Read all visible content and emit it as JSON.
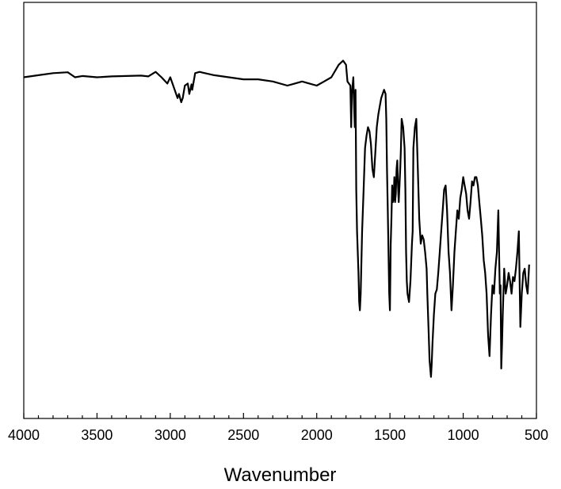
{
  "chart_data": {
    "type": "line",
    "title": "",
    "xlabel": "Wavenumber",
    "ylabel": "",
    "xlim": [
      4000,
      500
    ],
    "x_reversed": true,
    "ylim": [
      0,
      100
    ],
    "grid": false,
    "legend": "none",
    "x_ticks": [
      4000,
      3500,
      3000,
      2500,
      2000,
      1500,
      1000,
      500
    ],
    "x_tick_labels": [
      "4000",
      "3500",
      "3000",
      "2500",
      "2000",
      "1500",
      "1000",
      "500"
    ],
    "line_color": "#000000",
    "series": [
      {
        "x": [
          4000,
          3900,
          3800,
          3700,
          3650,
          3600,
          3500,
          3400,
          3300,
          3200,
          3150,
          3100,
          3060,
          3020,
          3000,
          2980,
          2950,
          2940,
          2925,
          2915,
          2900,
          2880,
          2870,
          2855,
          2850,
          2830,
          2800,
          2700,
          2600,
          2500,
          2400,
          2300,
          2200,
          2150,
          2100,
          2050,
          2000,
          1950,
          1900,
          1850,
          1820,
          1800,
          1790,
          1770,
          1765,
          1760,
          1750,
          1745,
          1740,
          1735,
          1730,
          1725,
          1720,
          1715,
          1710,
          1705,
          1700,
          1690,
          1680,
          1670,
          1660,
          1650,
          1640,
          1630,
          1620,
          1610,
          1600,
          1590,
          1580,
          1570,
          1560,
          1550,
          1540,
          1530,
          1525,
          1520,
          1515,
          1510,
          1505,
          1500,
          1495,
          1490,
          1485,
          1480,
          1475,
          1470,
          1465,
          1460,
          1455,
          1450,
          1445,
          1440,
          1435,
          1430,
          1425,
          1420,
          1410,
          1400,
          1395,
          1390,
          1385,
          1380,
          1370,
          1360,
          1350,
          1345,
          1340,
          1330,
          1320,
          1310,
          1300,
          1290,
          1280,
          1270,
          1260,
          1250,
          1245,
          1240,
          1235,
          1230,
          1225,
          1220,
          1215,
          1210,
          1200,
          1190,
          1180,
          1170,
          1160,
          1150,
          1140,
          1130,
          1120,
          1110,
          1100,
          1090,
          1080,
          1070,
          1060,
          1050,
          1040,
          1030,
          1020,
          1010,
          1000,
          990,
          980,
          970,
          960,
          950,
          940,
          930,
          920,
          910,
          900,
          890,
          880,
          870,
          860,
          850,
          840,
          830,
          820,
          810,
          800,
          790,
          780,
          770,
          760,
          750,
          745,
          740,
          735,
          730,
          720,
          710,
          700,
          690,
          680,
          670,
          660,
          650,
          640,
          630,
          620,
          610,
          600,
          590,
          580,
          570,
          560,
          550
        ],
        "y": [
          82,
          82.5,
          83,
          83.2,
          82,
          82.3,
          82,
          82.2,
          82.3,
          82.4,
          82.2,
          83.3,
          82,
          80.5,
          82,
          80,
          77,
          78,
          76,
          77,
          80,
          80.5,
          78,
          80.3,
          79,
          83,
          83.3,
          82.5,
          82,
          81.5,
          81.5,
          81,
          80,
          80.5,
          81,
          80.5,
          80,
          81,
          82,
          85,
          86,
          85,
          81,
          80,
          70,
          78,
          82,
          75,
          70,
          79,
          55,
          45,
          40,
          35,
          28,
          26,
          30,
          45,
          55,
          65,
          68,
          70,
          69,
          66,
          60,
          58,
          64,
          70,
          73,
          75,
          77,
          78,
          79,
          78,
          72,
          60,
          50,
          40,
          30,
          26,
          42,
          48,
          56,
          52,
          53,
          58,
          52,
          54,
          60,
          62,
          56,
          52,
          56,
          60,
          65,
          72,
          70,
          65,
          55,
          40,
          33,
          30,
          28,
          33,
          42,
          45,
          65,
          70,
          72,
          60,
          48,
          42,
          44,
          43,
          40,
          36,
          30,
          25,
          20,
          14,
          12,
          10,
          13,
          18,
          25,
          30,
          31,
          35,
          40,
          45,
          50,
          55,
          56,
          50,
          40,
          35,
          26,
          32,
          40,
          45,
          50,
          48,
          53,
          55,
          58,
          56,
          54,
          50,
          48,
          52,
          57,
          56,
          58,
          58,
          56,
          52,
          48,
          44,
          38,
          35,
          30,
          20,
          15,
          25,
          32,
          30,
          36,
          40,
          50,
          30,
          32,
          12,
          18,
          25,
          36,
          30,
          32,
          35,
          33,
          30,
          34,
          33,
          36,
          40,
          45,
          22,
          30,
          35,
          36,
          32,
          30,
          37
        ]
      }
    ]
  }
}
